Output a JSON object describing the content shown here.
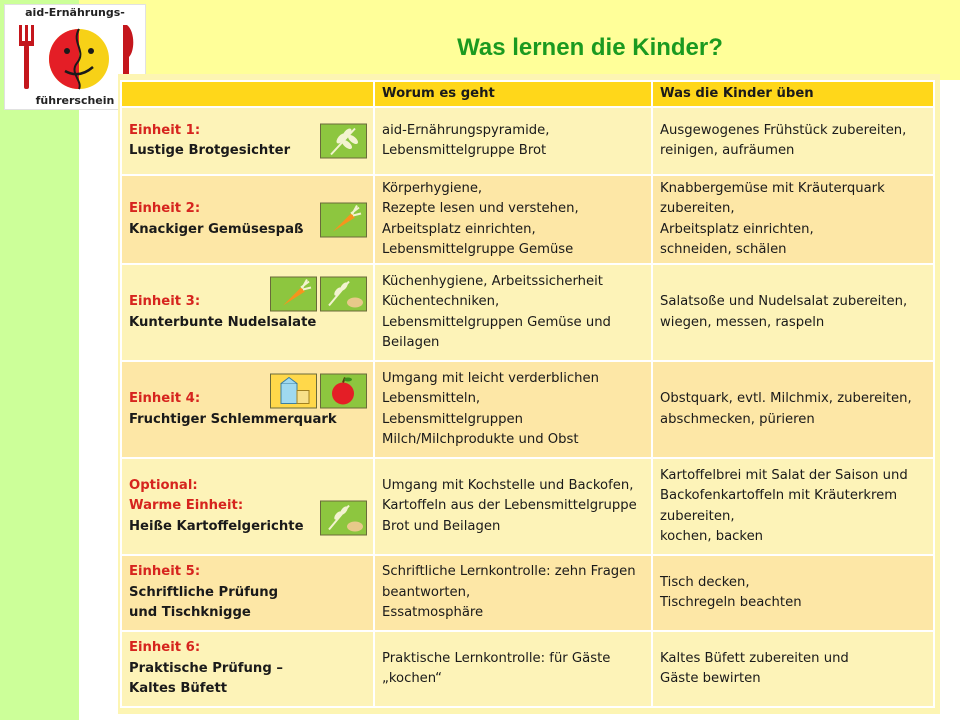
{
  "logo": {
    "top_text": "aid-Ernährungs-",
    "bottom_text": "führerschein"
  },
  "title": "Was lernen die Kinder?",
  "table": {
    "headers": [
      "",
      "Worum es geht",
      "Was die Kinder üben"
    ],
    "rows": [
      {
        "unit_label": "Einheit 1:",
        "unit_name": "Lustige Brotgesichter",
        "icons": [
          "grain-icon"
        ],
        "about": [
          "aid-Ernährungspyramide,",
          "Lebensmittelgruppe Brot"
        ],
        "practice": [
          "Ausgewogenes Frühstück zubereiten,",
          "reinigen, aufräumen"
        ]
      },
      {
        "unit_label": "Einheit 2:",
        "unit_name": "Knackiger Gemüsespaß",
        "icons": [
          "carrot-icon"
        ],
        "about": [
          "Körperhygiene,",
          "Rezepte lesen und verstehen,",
          "Arbeitsplatz einrichten,",
          "Lebensmittelgruppe Gemüse"
        ],
        "practice": [
          "Knabbergemüse mit Kräuterquark",
          "zubereiten,",
          "Arbeitsplatz einrichten,",
          "schneiden, schälen"
        ]
      },
      {
        "unit_label": "Einheit 3:",
        "unit_name": "Kunterbunte Nudelsalate",
        "icons": [
          "carrot-icon",
          "grain-potato-icon"
        ],
        "about": [
          "Küchenhygiene, Arbeitssicherheit",
          "Küchentechniken,",
          "Lebensmittelgruppen Gemüse und",
          "Beilagen"
        ],
        "practice": [
          "Salatsoße und Nudelsalat zubereiten,",
          "wiegen, messen, raspeln"
        ]
      },
      {
        "unit_label": "Einheit 4:",
        "unit_name": "Fruchtiger Schlemmerquark",
        "icons": [
          "milk-cheese-icon",
          "apple-icon"
        ],
        "about": [
          "Umgang mit leicht verderblichen",
          "Lebensmitteln,",
          "Lebensmittelgruppen",
          "Milch/Milchprodukte und Obst"
        ],
        "practice": [
          "Obstquark, evtl. Milchmix, zubereiten,",
          "abschmecken, pürieren"
        ]
      },
      {
        "unit_label": "Optional:",
        "unit_label2": "Warme Einheit:",
        "unit_name": "Heiße Kartoffelgerichte",
        "icons": [
          "grain-potato-icon"
        ],
        "about": [
          "Umgang mit Kochstelle und Backofen,",
          "Kartoffeln aus der Lebensmittelgruppe",
          "Brot und Beilagen"
        ],
        "practice": [
          "Kartoffelbrei mit Salat der Saison und",
          "Backofenkartoffeln mit Kräuterkrem",
          "zubereiten,",
          "kochen, backen"
        ]
      },
      {
        "unit_label": "Einheit 5:",
        "unit_name": "Schriftliche Prüfung",
        "unit_name2": "und Tischknigge",
        "icons": [],
        "about": [
          "Schriftliche Lernkontrolle: zehn Fragen",
          "beantworten,",
          "Essatmosphäre"
        ],
        "practice": [
          "Tisch decken,",
          "Tischregeln beachten"
        ]
      },
      {
        "unit_label": "Einheit 6:",
        "unit_name": "Praktische Prüfung –",
        "unit_name2": "Kaltes Büfett",
        "icons": [],
        "about": [
          "Praktische Lernkontrolle: für Gäste",
          "„kochen“"
        ],
        "practice": [
          "Kaltes Büfett zubereiten und",
          "Gäste bewirten"
        ]
      }
    ]
  },
  "colors": {
    "title": "#1b9a20",
    "unit_label": "#d6241e",
    "header": "#ffd71a",
    "row_light": "#fdf3b8",
    "row_dark": "#fde7a6",
    "left_strip": "#ccff99",
    "top_band": "#ffff99"
  }
}
